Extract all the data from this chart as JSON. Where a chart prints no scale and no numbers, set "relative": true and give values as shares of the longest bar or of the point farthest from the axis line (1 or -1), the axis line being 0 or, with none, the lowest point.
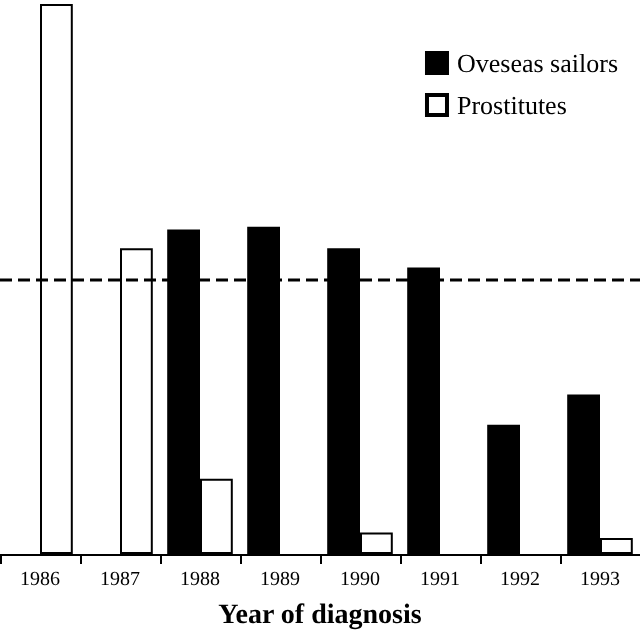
{
  "chart_data": {
    "type": "bar",
    "relative": true,
    "xlabel": "Year of diagnosis",
    "categories": [
      "1986",
      "1987",
      "1988",
      "1989",
      "1990",
      "1991",
      "1992",
      "1993"
    ],
    "series": [
      {
        "name": "Oveseas sailors",
        "color": "#000000",
        "values": [
          null,
          null,
          0.59,
          0.595,
          0.556,
          0.521,
          0.235,
          0.29
        ]
      },
      {
        "name": "Prostitutes",
        "color": "#ffffff",
        "values": [
          1,
          0.556,
          0.137,
          null,
          0.039,
          null,
          null,
          0.029
        ]
      }
    ],
    "ref_lines": [
      {
        "axis": "y",
        "value": 0.5,
        "color": "#000000",
        "line_style": "dashed"
      }
    ],
    "legend": "top right",
    "grid": false
  }
}
